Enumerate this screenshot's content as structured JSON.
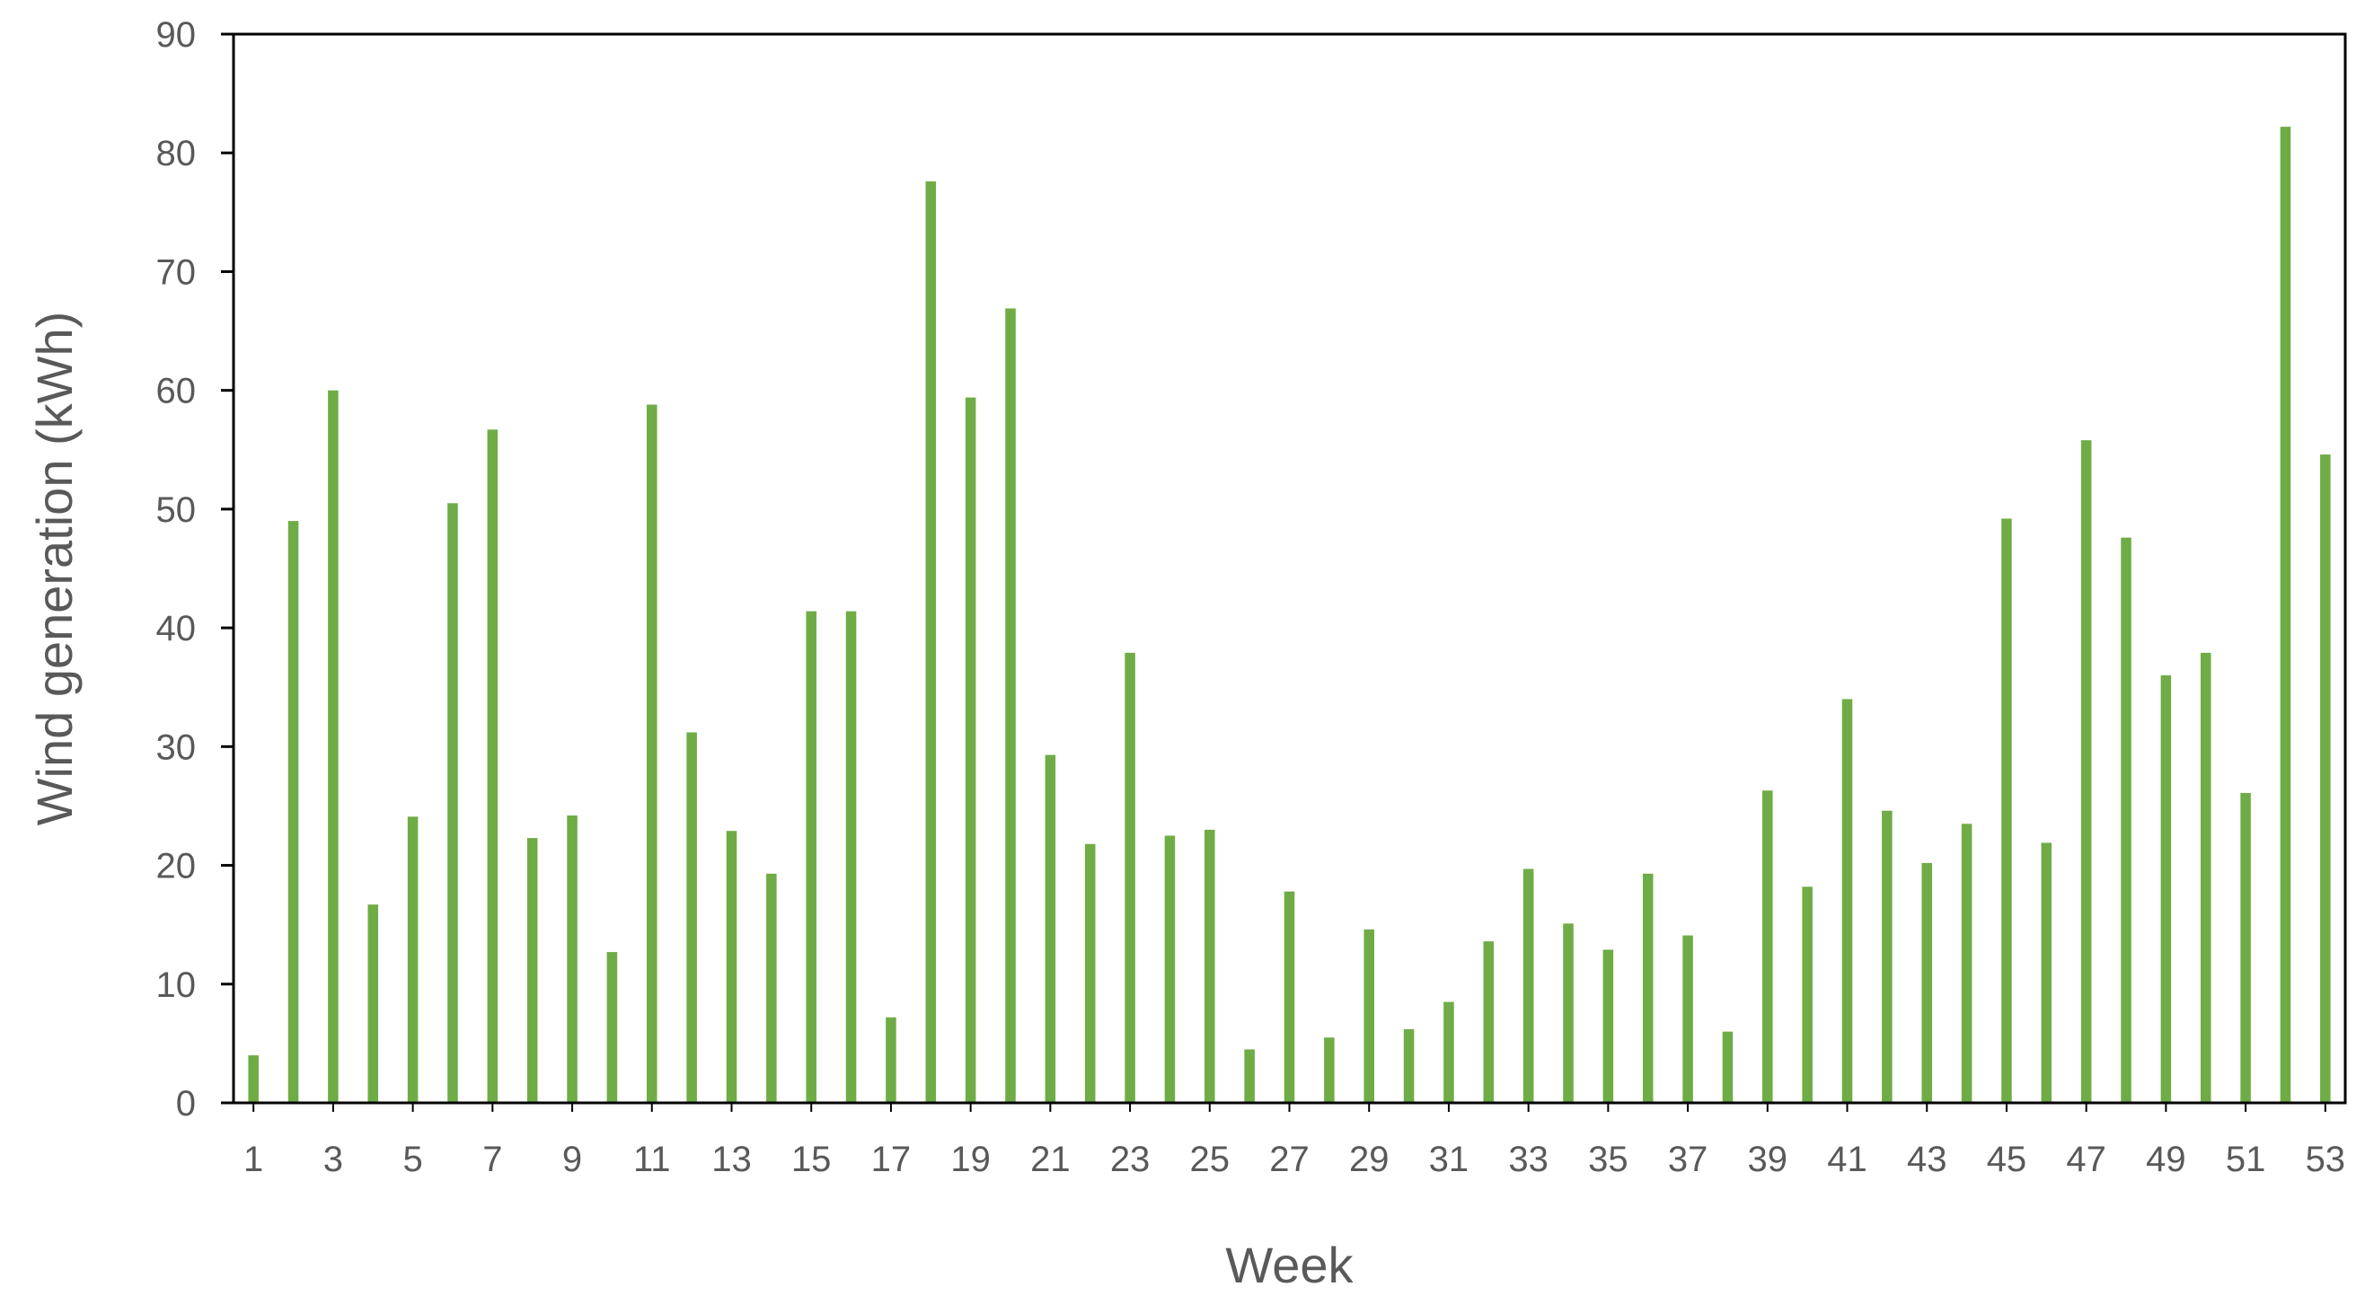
{
  "chart_data": {
    "type": "bar",
    "xlabel": "Week",
    "ylabel": "Wind generation (kWh)",
    "ylim": [
      0,
      90
    ],
    "yticks": [
      0,
      10,
      20,
      30,
      40,
      50,
      60,
      70,
      80,
      90
    ],
    "xtick_labels": [
      "1",
      "3",
      "5",
      "7",
      "9",
      "11",
      "13",
      "15",
      "17",
      "19",
      "21",
      "23",
      "25",
      "27",
      "29",
      "31",
      "33",
      "35",
      "37",
      "39",
      "41",
      "43",
      "45",
      "47",
      "49",
      "51",
      "53"
    ],
    "categories": [
      1,
      2,
      3,
      4,
      5,
      6,
      7,
      8,
      9,
      10,
      11,
      12,
      13,
      14,
      15,
      16,
      17,
      18,
      19,
      20,
      21,
      22,
      23,
      24,
      25,
      26,
      27,
      28,
      29,
      30,
      31,
      32,
      33,
      34,
      35,
      36,
      37,
      38,
      39,
      40,
      41,
      42,
      43,
      44,
      45,
      46,
      47,
      48,
      49,
      50,
      51,
      52,
      53
    ],
    "values": [
      4.0,
      49.0,
      60.0,
      16.7,
      24.1,
      50.5,
      56.7,
      22.3,
      24.2,
      12.7,
      58.8,
      31.2,
      22.9,
      19.3,
      41.4,
      41.4,
      7.2,
      77.6,
      59.4,
      66.9,
      29.3,
      21.8,
      37.9,
      22.5,
      23.0,
      4.5,
      17.8,
      5.5,
      14.6,
      6.2,
      8.5,
      13.6,
      19.7,
      15.1,
      12.9,
      19.3,
      14.1,
      6.0,
      26.3,
      18.2,
      34.0,
      24.6,
      20.2,
      23.5,
      49.2,
      21.9,
      55.8,
      47.6,
      36.0,
      37.9,
      26.1,
      82.2,
      54.6
    ],
    "grid": false,
    "legend": "none",
    "colors": {
      "bar": "#6FAC46",
      "axis": "#000000",
      "text": "#595959"
    }
  }
}
